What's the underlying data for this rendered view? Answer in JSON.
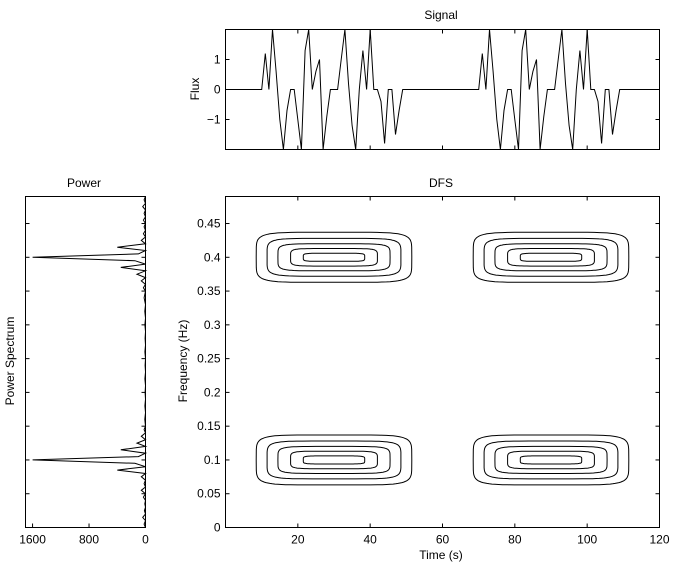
{
  "chart_data": [
    {
      "id": "signal",
      "type": "line",
      "title": "Signal",
      "xlabel": "",
      "ylabel": "Flux",
      "xlim": [
        0,
        120
      ],
      "ylim": [
        -2,
        2
      ],
      "yticks": [
        -1,
        0,
        1
      ],
      "yticklabels": [
        "−1",
        "0",
        "1"
      ],
      "grid": false,
      "bursts": [
        {
          "x": [
            10,
            11,
            12,
            13,
            14,
            15,
            16,
            17,
            18,
            19,
            20,
            21,
            22,
            23,
            24,
            25,
            26,
            27,
            28,
            29,
            30,
            31,
            32,
            33,
            34,
            35,
            36,
            37,
            38,
            39,
            40,
            41,
            42,
            43,
            44,
            45,
            46,
            47,
            48,
            49,
            50
          ],
          "y": [
            0,
            1.2,
            0,
            2,
            0.6,
            -1,
            -2,
            -0.7,
            0,
            0,
            -1,
            -2,
            1.3,
            2,
            0,
            0.6,
            1,
            -2,
            -0.9,
            0,
            0,
            0,
            1,
            2,
            0.2,
            -1.2,
            -2,
            0,
            1.3,
            0,
            2,
            0,
            0,
            -0.4,
            -1.8,
            0,
            0,
            -1.5,
            -0.7,
            0,
            0
          ]
        },
        {
          "x": [
            70,
            71,
            72,
            73,
            74,
            75,
            76,
            77,
            78,
            79,
            80,
            81,
            82,
            83,
            84,
            85,
            86,
            87,
            88,
            89,
            90,
            91,
            92,
            93,
            94,
            95,
            96,
            97,
            98,
            99,
            100,
            101,
            102,
            103,
            104,
            105,
            106,
            107,
            108,
            109,
            110
          ],
          "y": [
            0,
            1.2,
            0,
            2,
            0.6,
            -1,
            -2,
            -0.7,
            0,
            0,
            -1,
            -2,
            1.3,
            2,
            0,
            0.6,
            1,
            -2,
            -0.9,
            0,
            0,
            0,
            1,
            2,
            0.2,
            -1.2,
            -2,
            0,
            1.3,
            0,
            2,
            0,
            0,
            -0.4,
            -1.8,
            0,
            0,
            -1.5,
            -0.7,
            0,
            0
          ]
        }
      ]
    },
    {
      "id": "power",
      "type": "line",
      "title": "Power",
      "xlabel": "",
      "ylabel": "Power Spectrum",
      "xlim": [
        1700,
        0
      ],
      "ylim": [
        0,
        0.49
      ],
      "xticks": [
        1600,
        800,
        0
      ],
      "xticklabels": [
        "1600",
        "800",
        "0"
      ],
      "grid": false,
      "spectrum": {
        "freq": [
          0,
          0.005,
          0.01,
          0.015,
          0.02,
          0.025,
          0.03,
          0.035,
          0.04,
          0.045,
          0.05,
          0.055,
          0.06,
          0.065,
          0.07,
          0.075,
          0.08,
          0.085,
          0.09,
          0.095,
          0.1,
          0.105,
          0.11,
          0.115,
          0.12,
          0.125,
          0.13,
          0.135,
          0.14,
          0.145,
          0.15,
          0.16,
          0.17,
          0.18,
          0.19,
          0.2,
          0.21,
          0.22,
          0.23,
          0.24,
          0.25,
          0.26,
          0.27,
          0.28,
          0.29,
          0.3,
          0.31,
          0.32,
          0.33,
          0.34,
          0.35,
          0.355,
          0.36,
          0.365,
          0.37,
          0.375,
          0.38,
          0.385,
          0.39,
          0.395,
          0.4,
          0.405,
          0.41,
          0.415,
          0.42,
          0.425,
          0.43,
          0.435,
          0.44,
          0.445,
          0.45,
          0.455,
          0.46,
          0.465,
          0.47,
          0.475,
          0.48,
          0.485,
          0.49
        ],
        "power": [
          0,
          20,
          0,
          40,
          0,
          15,
          0,
          10,
          0,
          30,
          0,
          60,
          0,
          20,
          0,
          60,
          0,
          400,
          0,
          150,
          1600,
          100,
          0,
          350,
          0,
          120,
          0,
          60,
          0,
          20,
          0,
          10,
          0,
          8,
          0,
          6,
          0,
          8,
          0,
          6,
          0,
          8,
          0,
          6,
          0,
          8,
          0,
          10,
          0,
          20,
          0,
          30,
          0,
          60,
          0,
          120,
          0,
          350,
          0,
          150,
          1600,
          100,
          0,
          400,
          0,
          60,
          0,
          30,
          0,
          20,
          0,
          30,
          0,
          20,
          0,
          40,
          0,
          20,
          0
        ]
      }
    },
    {
      "id": "dfs",
      "type": "contour",
      "title": "DFS",
      "xlabel": "Time (s)",
      "ylabel": "Frequency (Hz)",
      "xlim": [
        0,
        120
      ],
      "ylim": [
        0,
        0.49
      ],
      "xticks": [
        20,
        40,
        60,
        80,
        100,
        120
      ],
      "xticklabels": [
        "20",
        "40",
        "60",
        "80",
        "100",
        "120"
      ],
      "yticks": [
        0,
        0.05,
        0.1,
        0.15,
        0.2,
        0.25,
        0.3,
        0.35,
        0.4,
        0.45
      ],
      "yticklabels": [
        "0",
        "0.05",
        "0.1",
        "0.15",
        "0.2",
        "0.25",
        "0.3",
        "0.35",
        "0.4",
        "0.45"
      ],
      "grid": false,
      "blobs": [
        {
          "t_center": 30,
          "f_center": 0.4
        },
        {
          "t_center": 90,
          "f_center": 0.4
        },
        {
          "t_center": 30,
          "f_center": 0.1
        },
        {
          "t_center": 90,
          "f_center": 0.1
        }
      ],
      "contour_levels": [
        {
          "half_width_s": 21.5,
          "half_height_hz": 0.037
        },
        {
          "half_width_s": 18.5,
          "half_height_hz": 0.028
        },
        {
          "half_width_s": 15.5,
          "half_height_hz": 0.02
        },
        {
          "half_width_s": 12.0,
          "half_height_hz": 0.013
        },
        {
          "half_width_s": 8.5,
          "half_height_hz": 0.006
        }
      ]
    }
  ]
}
